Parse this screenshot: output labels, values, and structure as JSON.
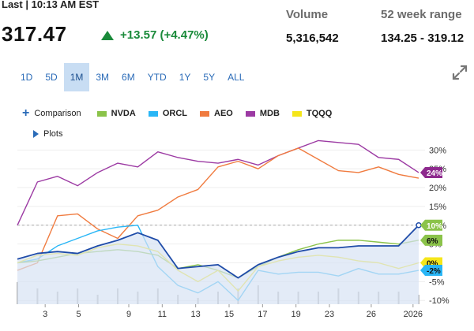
{
  "quote": {
    "last_label": "Last | 10:13 AM EST",
    "price": "317.47",
    "change": "+13.57 (+4.47%)",
    "volume_label": "Volume",
    "volume_value": "5,316,542",
    "range_label": "52 week range",
    "range_value": "134.25 - 319.12",
    "up_color": "#1a8a3a"
  },
  "ranges": [
    {
      "label": "1D",
      "active": false
    },
    {
      "label": "5D",
      "active": false
    },
    {
      "label": "1M",
      "active": true
    },
    {
      "label": "3M",
      "active": false
    },
    {
      "label": "6M",
      "active": false
    },
    {
      "label": "YTD",
      "active": false
    },
    {
      "label": "1Y",
      "active": false
    },
    {
      "label": "5Y",
      "active": false
    },
    {
      "label": "ALL",
      "active": false
    }
  ],
  "legend": {
    "comparison_label": "Comparison",
    "plots_label": "Plots",
    "items": [
      {
        "name": "NVDA",
        "color": "#8bc34a"
      },
      {
        "name": "ORCL",
        "color": "#29b6f6"
      },
      {
        "name": "AEO",
        "color": "#f07b3f"
      },
      {
        "name": "MDB",
        "color": "#9c3aa3"
      },
      {
        "name": "TQQQ",
        "color": "#f5e61a"
      }
    ]
  },
  "chart_data": {
    "type": "line",
    "x_ticks": [
      "3",
      "5",
      "9",
      "11",
      "13",
      "15",
      "17",
      "19",
      "23",
      "26",
      "2026"
    ],
    "y_ticks": [
      "30%",
      "25%",
      "20%",
      "15%",
      "10%",
      "5%",
      "0%",
      "-5%",
      "-10%"
    ],
    "ylim": [
      -11,
      33
    ],
    "reference_line": 10,
    "series": [
      {
        "name": "MDB",
        "color": "#9c3aa3",
        "values": [
          10,
          21.5,
          23,
          20.5,
          24,
          26.5,
          25.5,
          29.5,
          28,
          27,
          26.5,
          27.5,
          26,
          28.5,
          30.5,
          32.5,
          32,
          31.5,
          28,
          27.5,
          24
        ]
      },
      {
        "name": "AEO",
        "color": "#f07b3f",
        "values": [
          -2,
          0,
          12.5,
          13,
          9,
          6.5,
          12.5,
          14,
          17.5,
          19.5,
          25.5,
          27,
          25,
          28.5,
          30.5,
          27.5,
          24.5,
          24,
          25.5,
          23.5,
          22.5
        ]
      },
      {
        "name": "ORCL",
        "color": "#29b6f6",
        "values": [
          0,
          1,
          4.5,
          6.5,
          8.5,
          9.5,
          10,
          -1,
          -6,
          -8,
          -5,
          -10,
          -2,
          -3,
          -2.5,
          -2.5,
          -3.5,
          -1.5,
          -3,
          -3,
          -2
        ]
      },
      {
        "name": "NVDA",
        "color": "#8bc34a",
        "values": [
          0,
          0.5,
          1.5,
          2.5,
          3,
          3.5,
          3,
          2,
          -1.5,
          -0.5,
          -2,
          -4,
          -1,
          1.5,
          3.5,
          5,
          6,
          6,
          5.5,
          5,
          6
        ]
      },
      {
        "name": "TQQQ",
        "color": "#f5e61a",
        "values": [
          0,
          2,
          2.5,
          2,
          4,
          5,
          4.5,
          3,
          -2,
          -5,
          -2,
          -7.5,
          -1,
          0.5,
          1.5,
          2,
          1.5,
          0.5,
          0,
          -1.5,
          0
        ]
      },
      {
        "name": "Price",
        "color": "#1e4ba8",
        "fill": "#d7e3f3",
        "values": [
          1,
          2.5,
          3,
          2.5,
          4.5,
          6,
          8,
          6,
          -1.5,
          -1,
          -0.5,
          -4,
          -0.5,
          1.5,
          3,
          4,
          4,
          4.5,
          4.5,
          4.5,
          10
        ]
      }
    ],
    "end_labels": [
      {
        "text": "24%",
        "value": 24,
        "bg": "#8e2a8e",
        "fg": "#ffffff"
      },
      {
        "text": "10%",
        "value": 10,
        "bg": "#8bc34a",
        "fg": "#ffffff"
      },
      {
        "text": "6%",
        "value": 6,
        "bg": "#8bc34a",
        "fg": "#111111"
      },
      {
        "text": "0%",
        "value": 0,
        "bg": "#f5e61a",
        "fg": "#111111"
      },
      {
        "text": "-2%",
        "value": -2,
        "bg": "#29b6f6",
        "fg": "#111111"
      }
    ],
    "volume_bars": [
      7,
      5,
      4,
      5,
      3,
      5,
      4,
      5,
      3,
      2,
      4,
      5,
      6,
      4,
      4,
      4,
      5,
      4,
      4,
      4,
      3
    ]
  }
}
